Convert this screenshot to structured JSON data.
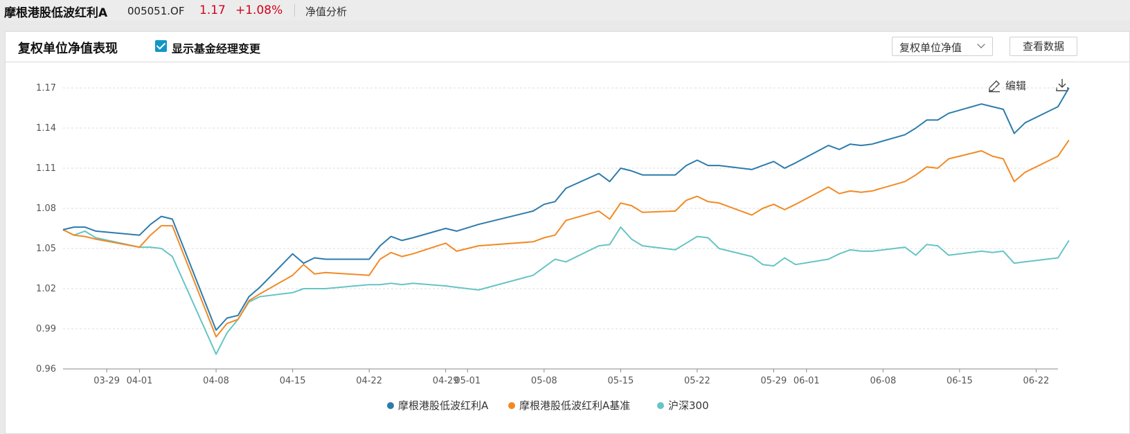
{
  "header": {
    "fund_name": "摩根港股低波红利A",
    "fund_code": "005051.OF",
    "nav": "1.17",
    "change": "+1.08%",
    "tab": "净值分析"
  },
  "panel": {
    "title": "复权单位净值表现",
    "checkbox_label": "显示基金经理变更",
    "checkbox_checked": true,
    "select_label": "复权单位净值",
    "data_button": "查看数据",
    "edit_label": "编辑"
  },
  "icons": [
    "check-icon",
    "chevron-down-icon",
    "edit-icon",
    "download-icon"
  ],
  "colors": {
    "fund": "#2c7bab",
    "benchmark": "#f18a24",
    "csi300": "#66c4c4",
    "price_up": "#d0021b"
  },
  "chart_data": {
    "type": "line",
    "ylim": [
      0.96,
      1.17
    ],
    "yticks": [
      0.96,
      0.99,
      1.02,
      1.05,
      1.08,
      1.11,
      1.14,
      1.17
    ],
    "xlim": [
      "2024-03-25",
      "2024-06-24"
    ],
    "xticks": [
      "03-29",
      "04-01",
      "04-08",
      "04-15",
      "04-22",
      "04-29",
      "05-01",
      "05-08",
      "05-15",
      "05-22",
      "05-29",
      "06-01",
      "06-08",
      "06-15",
      "06-22"
    ],
    "xtick_dates": [
      "2024-03-29",
      "2024-04-01",
      "2024-04-08",
      "2024-04-15",
      "2024-04-22",
      "2024-04-29",
      "2024-05-01",
      "2024-05-08",
      "2024-05-15",
      "2024-05-22",
      "2024-05-29",
      "2024-06-01",
      "2024-06-08",
      "2024-06-15",
      "2024-06-22"
    ],
    "grid": true,
    "legend_position": "bottom-center",
    "dates": [
      "2024-03-25",
      "2024-03-26",
      "2024-03-27",
      "2024-03-28",
      "2024-04-01",
      "2024-04-02",
      "2024-04-03",
      "2024-04-04",
      "2024-04-08",
      "2024-04-09",
      "2024-04-10",
      "2024-04-11",
      "2024-04-12",
      "2024-04-15",
      "2024-04-16",
      "2024-04-17",
      "2024-04-18",
      "2024-04-22",
      "2024-04-23",
      "2024-04-24",
      "2024-04-25",
      "2024-04-26",
      "2024-04-29",
      "2024-04-30",
      "2024-05-02",
      "2024-05-07",
      "2024-05-08",
      "2024-05-09",
      "2024-05-10",
      "2024-05-13",
      "2024-05-14",
      "2024-05-15",
      "2024-05-16",
      "2024-05-17",
      "2024-05-20",
      "2024-05-21",
      "2024-05-22",
      "2024-05-23",
      "2024-05-24",
      "2024-05-27",
      "2024-05-28",
      "2024-05-29",
      "2024-05-30",
      "2024-05-31",
      "2024-06-03",
      "2024-06-04",
      "2024-06-05",
      "2024-06-06",
      "2024-06-07",
      "2024-06-10",
      "2024-06-11",
      "2024-06-12",
      "2024-06-13",
      "2024-06-14",
      "2024-06-17",
      "2024-06-18",
      "2024-06-19",
      "2024-06-20",
      "2024-06-21",
      "2024-06-24",
      "2024-06-25"
    ],
    "series": [
      {
        "name": "摩根港股低波红利A",
        "values": [
          1.064,
          1.066,
          1.066,
          1.063,
          1.06,
          1.068,
          1.074,
          1.072,
          0.989,
          0.998,
          1.0,
          1.014,
          1.021,
          1.046,
          1.039,
          1.043,
          1.042,
          1.042,
          1.052,
          1.059,
          1.056,
          1.058,
          1.065,
          1.063,
          1.068,
          1.078,
          1.083,
          1.085,
          1.095,
          1.106,
          1.1,
          1.11,
          1.108,
          1.105,
          1.105,
          1.112,
          1.116,
          1.112,
          1.112,
          1.109,
          1.112,
          1.115,
          1.11,
          1.114,
          1.127,
          1.124,
          1.128,
          1.127,
          1.128,
          1.135,
          1.14,
          1.146,
          1.146,
          1.151,
          1.158,
          1.156,
          1.154,
          1.136,
          1.144,
          1.156,
          1.17
        ]
      },
      {
        "name": "摩根港股低波红利A基准",
        "values": [
          1.064,
          1.06,
          1.059,
          1.057,
          1.051,
          1.06,
          1.067,
          1.067,
          0.984,
          0.994,
          0.997,
          1.011,
          1.016,
          1.03,
          1.038,
          1.031,
          1.032,
          1.03,
          1.042,
          1.047,
          1.044,
          1.046,
          1.054,
          1.048,
          1.052,
          1.055,
          1.058,
          1.06,
          1.071,
          1.078,
          1.072,
          1.084,
          1.082,
          1.077,
          1.078,
          1.086,
          1.089,
          1.085,
          1.084,
          1.075,
          1.08,
          1.083,
          1.079,
          1.083,
          1.096,
          1.091,
          1.093,
          1.092,
          1.093,
          1.1,
          1.105,
          1.111,
          1.11,
          1.117,
          1.123,
          1.119,
          1.117,
          1.1,
          1.107,
          1.119,
          1.131
        ]
      },
      {
        "name": "沪深300",
        "values": [
          1.064,
          1.06,
          1.063,
          1.058,
          1.051,
          1.051,
          1.05,
          1.044,
          0.971,
          0.987,
          0.997,
          1.01,
          1.014,
          1.017,
          1.02,
          1.02,
          1.02,
          1.023,
          1.023,
          1.024,
          1.023,
          1.024,
          1.022,
          1.021,
          1.019,
          1.03,
          1.036,
          1.042,
          1.04,
          1.052,
          1.053,
          1.066,
          1.057,
          1.052,
          1.049,
          1.054,
          1.059,
          1.058,
          1.05,
          1.044,
          1.038,
          1.037,
          1.043,
          1.038,
          1.042,
          1.046,
          1.049,
          1.048,
          1.048,
          1.051,
          1.045,
          1.053,
          1.052,
          1.045,
          1.048,
          1.047,
          1.048,
          1.039,
          1.04,
          1.043,
          1.056
        ]
      }
    ]
  }
}
